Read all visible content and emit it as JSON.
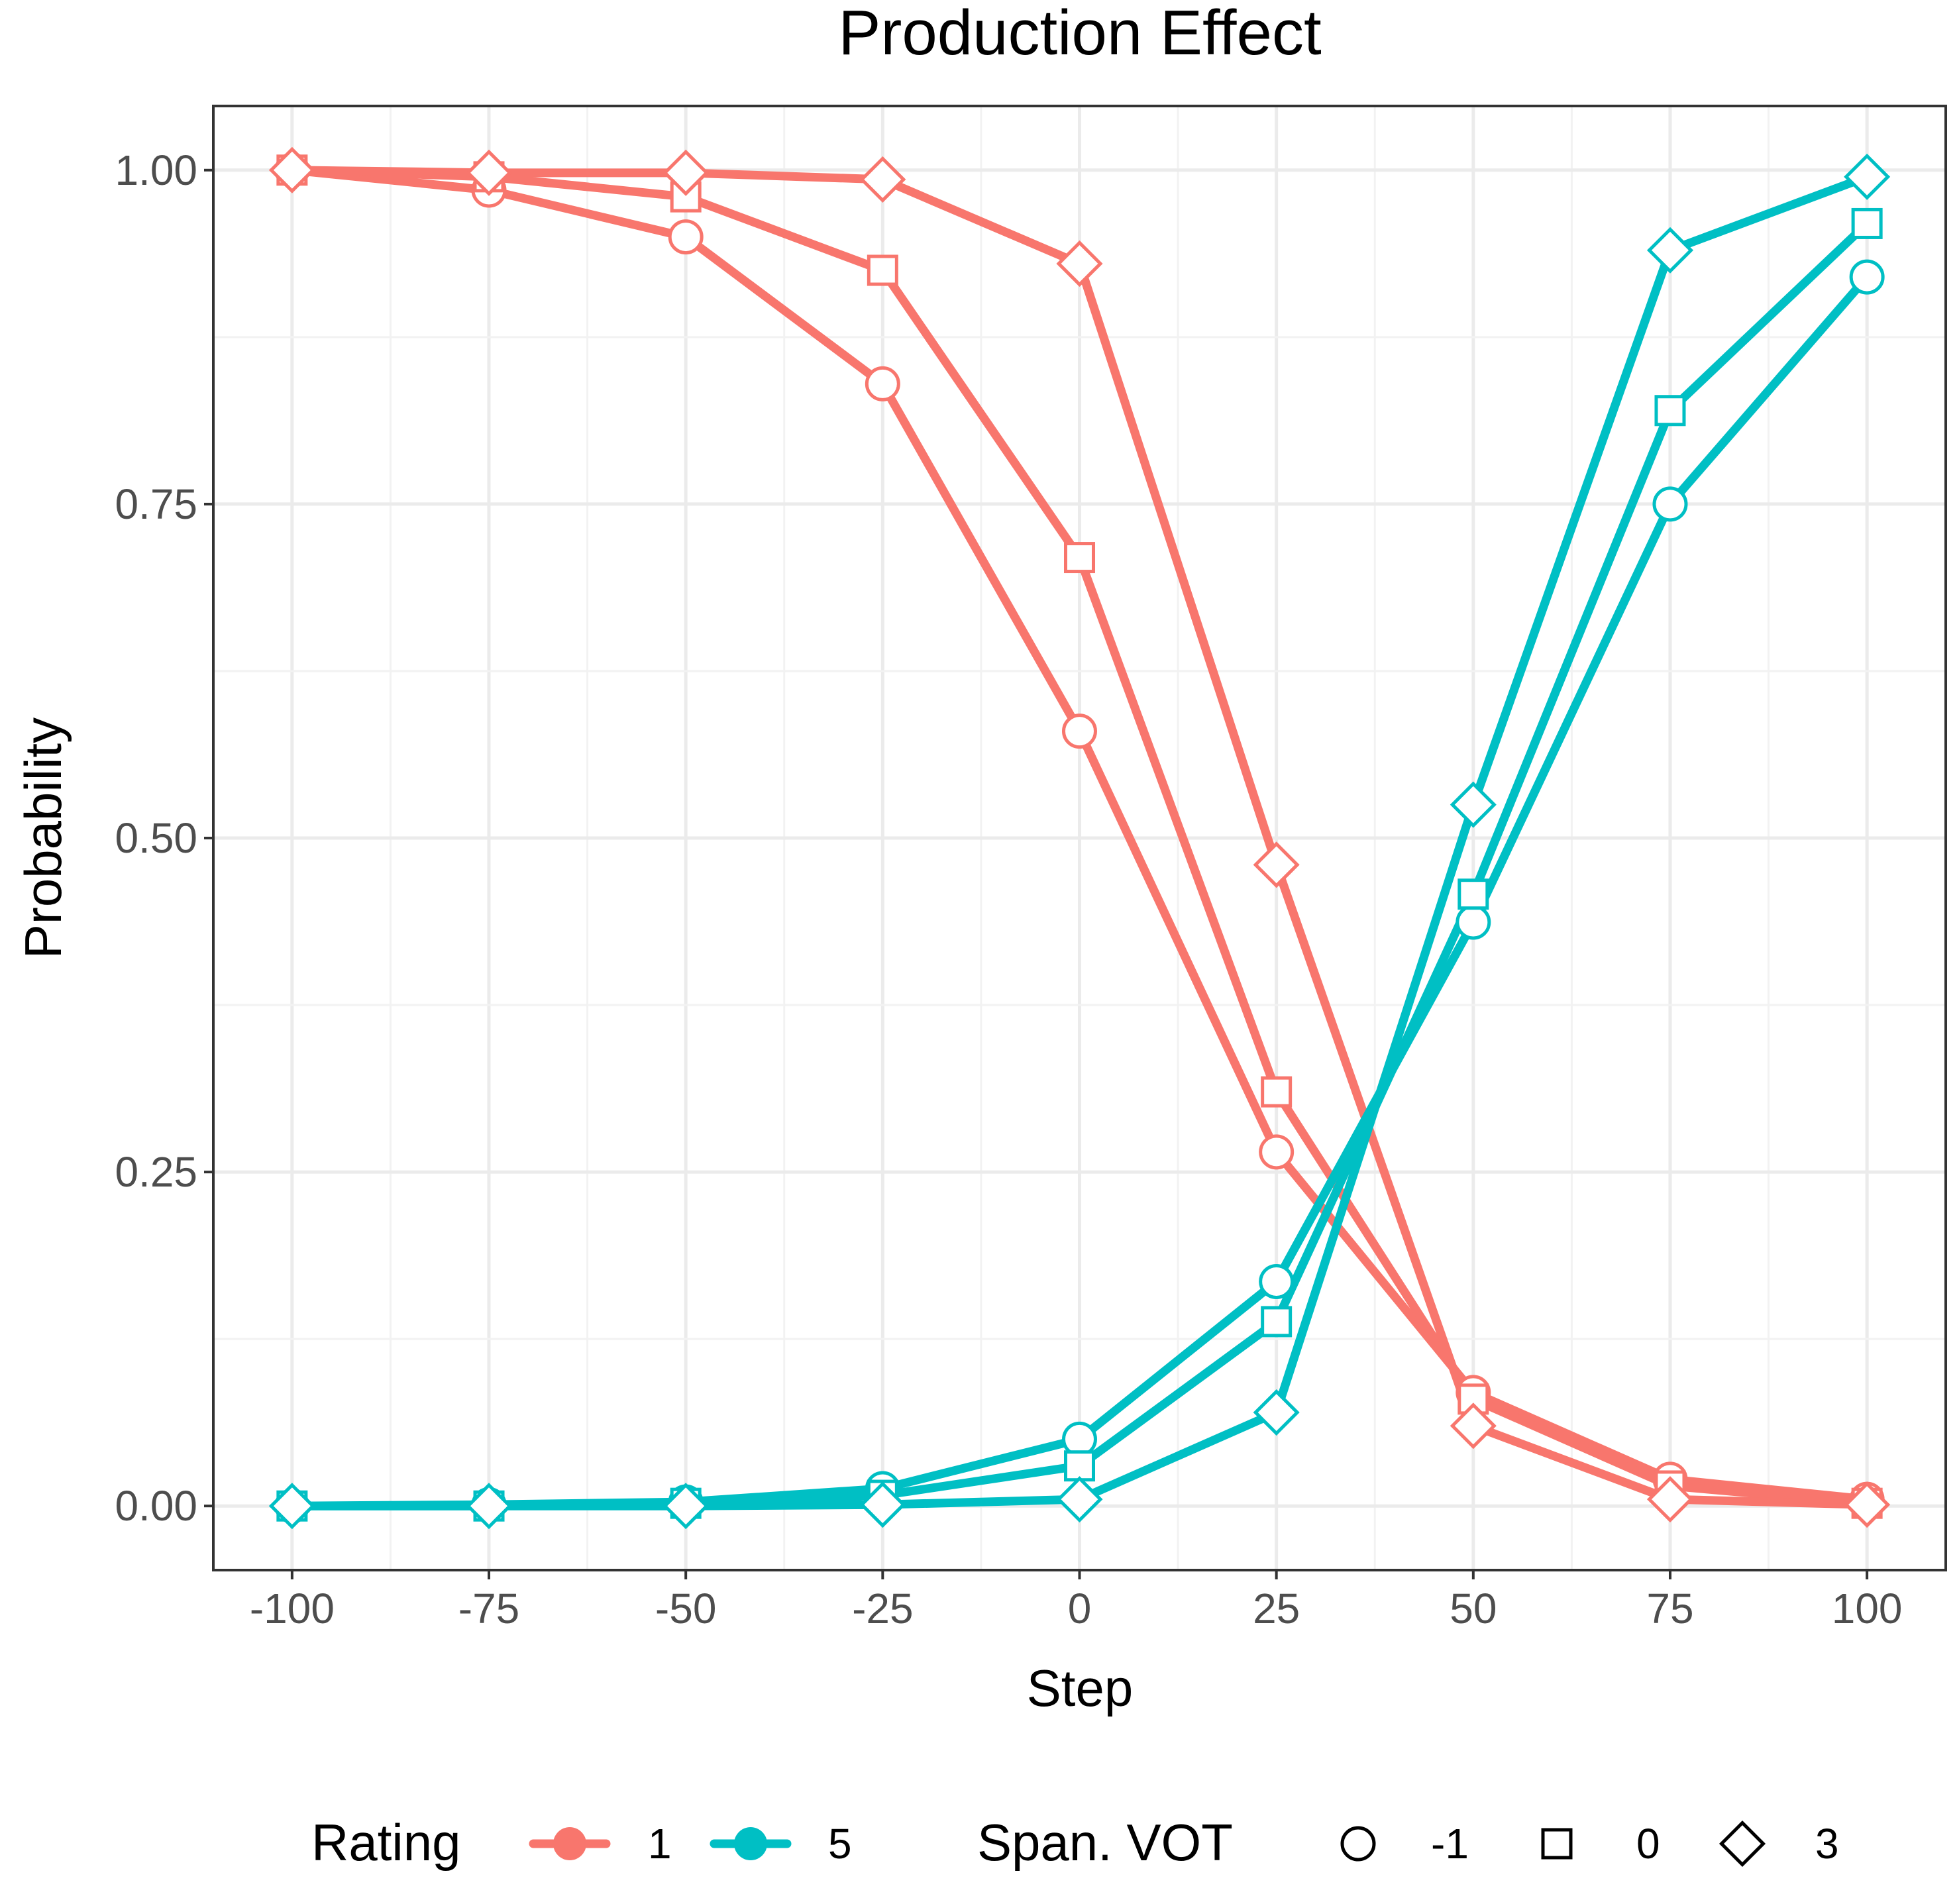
{
  "chart_data": {
    "type": "line",
    "title": "Production Effect",
    "xlabel": "Step",
    "ylabel": "Probability",
    "x": [
      -100,
      -75,
      -50,
      -25,
      0,
      25,
      50,
      75,
      100
    ],
    "xlim": [
      -110,
      110
    ],
    "ylim": [
      -0.048,
      1.048
    ],
    "x_ticks": [
      -100,
      -75,
      -50,
      -25,
      0,
      25,
      50,
      75,
      100
    ],
    "x_tick_labels": [
      "-100",
      "-75",
      "-50",
      "-25",
      "0",
      "25",
      "50",
      "75",
      "100"
    ],
    "y_ticks": [
      0,
      0.25,
      0.5,
      0.75,
      1
    ],
    "y_tick_labels": [
      "0.00",
      "0.25",
      "0.50",
      "0.75",
      "1.00"
    ],
    "grid": true,
    "legend_position": "bottom",
    "series": [
      {
        "name": "Rating 1, Span. VOT -1",
        "rating": "1",
        "vot": "-1",
        "shape": "circle",
        "color": "#F8766D",
        "values": [
          1.0,
          0.985,
          0.95,
          0.84,
          0.58,
          0.265,
          0.085,
          0.02,
          0.005
        ]
      },
      {
        "name": "Rating 1, Span. VOT 0",
        "rating": "1",
        "vot": "0",
        "shape": "square",
        "color": "#F8766D",
        "values": [
          1.0,
          0.995,
          0.98,
          0.925,
          0.71,
          0.31,
          0.08,
          0.015,
          0.002
        ]
      },
      {
        "name": "Rating 1, Span. VOT 3",
        "rating": "1",
        "vot": "3",
        "shape": "diamond",
        "color": "#F8766D",
        "values": [
          1.0,
          0.998,
          0.998,
          0.993,
          0.93,
          0.48,
          0.06,
          0.005,
          0.001
        ]
      },
      {
        "name": "Rating 5, Span. VOT -1",
        "rating": "5",
        "vot": "-1",
        "shape": "circle",
        "color": "#00BFC4",
        "values": [
          0.0,
          0.001,
          0.003,
          0.013,
          0.05,
          0.168,
          0.437,
          0.75,
          0.92
        ]
      },
      {
        "name": "Rating 5, Span. VOT 0",
        "rating": "5",
        "vot": "0",
        "shape": "square",
        "color": "#00BFC4",
        "values": [
          0.0,
          0.0,
          0.002,
          0.008,
          0.03,
          0.138,
          0.458,
          0.82,
          0.96
        ]
      },
      {
        "name": "Rating 5, Span. VOT 3",
        "rating": "5",
        "vot": "3",
        "shape": "diamond",
        "color": "#00BFC4",
        "values": [
          0.0,
          0.0,
          0.0,
          0.001,
          0.005,
          0.07,
          0.525,
          0.94,
          0.995
        ]
      }
    ],
    "legend": {
      "rating_title": "Rating",
      "rating_items": [
        {
          "label": "1",
          "color": "#F8766D"
        },
        {
          "label": "5",
          "color": "#00BFC4"
        }
      ],
      "vot_title": "Span. VOT",
      "vot_items": [
        {
          "label": "-1",
          "shape": "circle"
        },
        {
          "label": "0",
          "shape": "square"
        },
        {
          "label": "3",
          "shape": "diamond"
        }
      ]
    }
  }
}
